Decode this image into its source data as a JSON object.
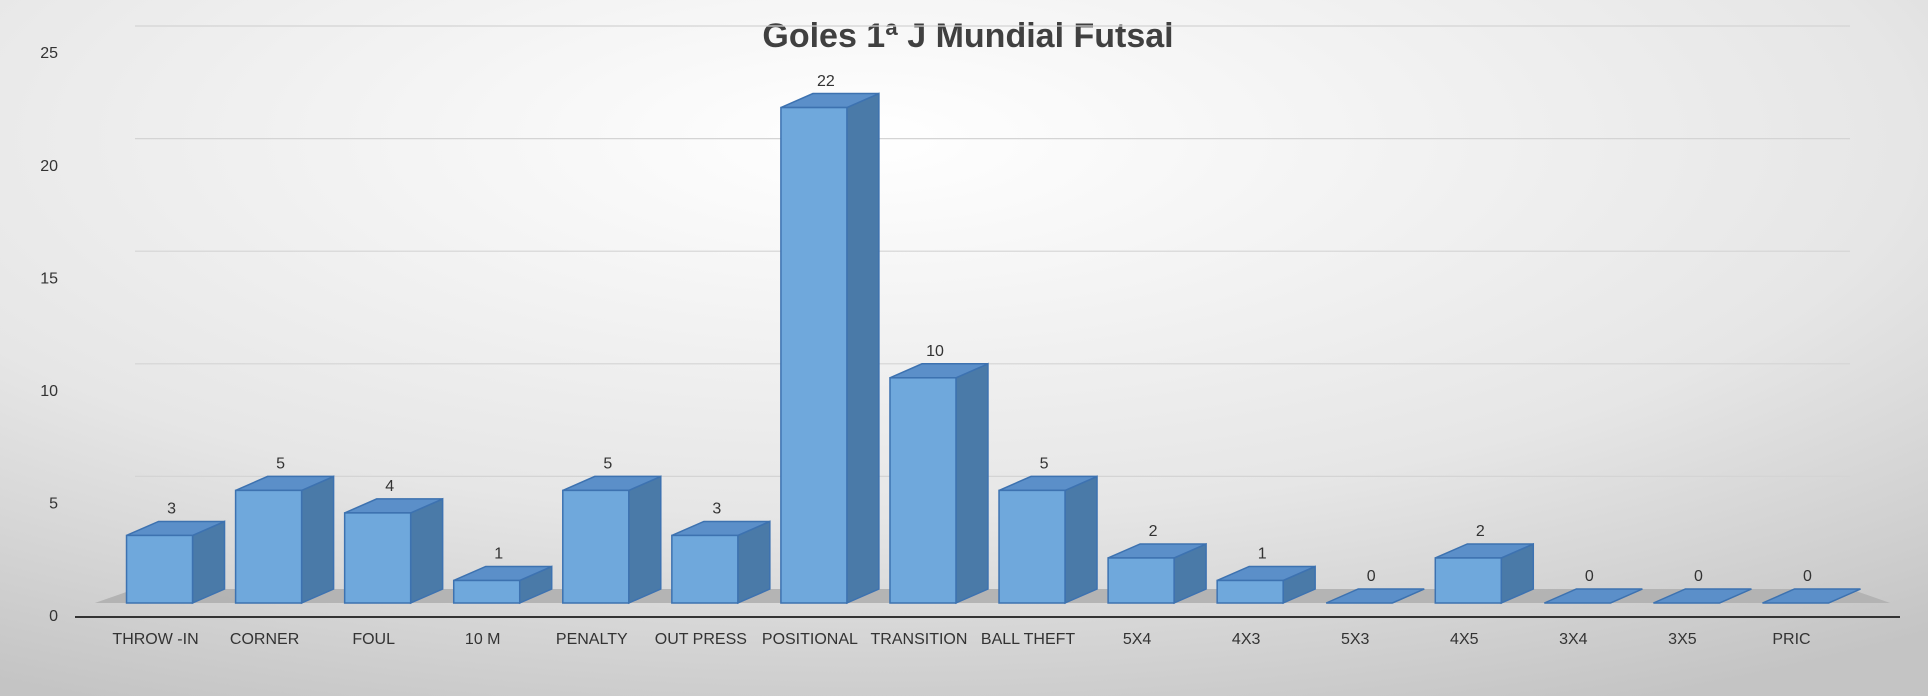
{
  "chart_data": {
    "type": "bar3d",
    "title": "Goles 1ª J Mundial Futsal",
    "categories": [
      "THROW -IN",
      "CORNER",
      "FOUL",
      "10 M",
      "PENALTY",
      "OUT PRESS",
      "POSITIONAL",
      "TRANSITION",
      "BALL THEFT",
      "5X4",
      "4X3",
      "5X3",
      "4X5",
      "3X4",
      "3X5",
      "PRIC"
    ],
    "values": [
      3,
      5,
      4,
      1,
      5,
      3,
      22,
      10,
      5,
      2,
      1,
      0,
      2,
      0,
      0,
      0
    ],
    "color": "#6fa8dc",
    "ylim": [
      0,
      25
    ],
    "yticks": [
      0,
      5,
      10,
      15,
      20,
      25
    ],
    "grid": true
  }
}
